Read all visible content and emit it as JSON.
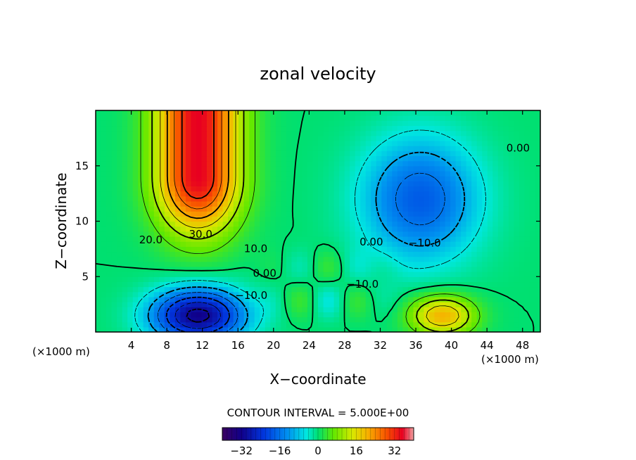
{
  "chart_data": {
    "type": "heatmap",
    "title": "zonal velocity",
    "xlabel": "X−coordinate",
    "ylabel": "Z−coordinate",
    "x_unit_left": "(×1000 m)",
    "x_unit_right": "(×1000 m)",
    "xlim": [
      0,
      50
    ],
    "ylim": [
      0,
      20
    ],
    "x_ticks": [
      4,
      8,
      12,
      16,
      20,
      24,
      28,
      32,
      36,
      40,
      44,
      48
    ],
    "y_ticks": [
      5,
      10,
      15
    ],
    "contour_interval_text": "CONTOUR INTERVAL = 5.000E+00",
    "colorbar": {
      "min": -40,
      "max": 40,
      "ticks": [
        -32,
        -16,
        0,
        16,
        32
      ],
      "tick_labels": [
        "−32",
        "−16",
        "0",
        "16",
        "32"
      ]
    },
    "contour_labels": [
      {
        "text": "30.0",
        "x": 11.8,
        "z": 8.5
      },
      {
        "text": "20.0",
        "x": 6.2,
        "z": 8.0
      },
      {
        "text": "10.0",
        "x": 18.0,
        "z": 7.2
      },
      {
        "text": "0.00",
        "x": 19.0,
        "z": 5.0
      },
      {
        "text": "−10.0",
        "x": 17.5,
        "z": 3.0
      },
      {
        "text": "−10.0",
        "x": 30.0,
        "z": 4.0
      },
      {
        "text": "0.00",
        "x": 31.0,
        "z": 7.8
      },
      {
        "text": "−10.0",
        "x": 37.0,
        "z": 7.7
      },
      {
        "text": "0.00",
        "x": 47.5,
        "z": 16.3
      }
    ],
    "features": [
      {
        "name": "positive jet core",
        "x": 11.5,
        "z": 14.0,
        "value": 35
      },
      {
        "name": "negative return-flow core",
        "x": 11.5,
        "z": 1.5,
        "value": -32
      },
      {
        "name": "upper negative core",
        "x": 36.5,
        "z": 12.0,
        "value": -18
      },
      {
        "name": "lower positive lobe",
        "x": 39.0,
        "z": 1.5,
        "value": 20
      }
    ]
  }
}
